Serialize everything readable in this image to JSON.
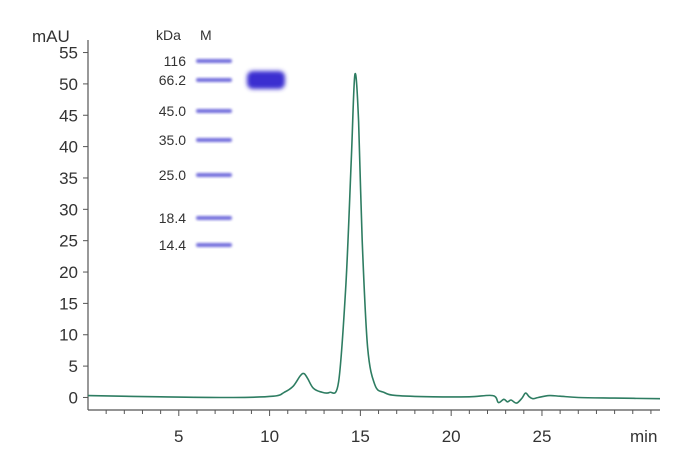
{
  "chart_data": {
    "type": "line",
    "xlabel": "min",
    "ylabel": "mAU",
    "xlim": [
      0,
      31.5
    ],
    "ylim": [
      -2,
      57
    ],
    "xticks": [
      5,
      10,
      15,
      20,
      25
    ],
    "yticks": [
      0,
      5,
      10,
      15,
      20,
      25,
      30,
      35,
      40,
      45,
      50,
      55
    ],
    "x_minor_step": 1,
    "grid": false,
    "line_color": "#2e7d62",
    "series": [
      {
        "x": [
          0,
          4,
          8,
          10.2,
          10.8,
          11.3,
          11.7,
          11.9,
          12.1,
          12.4,
          12.8,
          13.3,
          13.8,
          14.2,
          14.5,
          14.7,
          14.9,
          15.1,
          15.4,
          15.8,
          16.3,
          17,
          19,
          21,
          22.3,
          22.6,
          22.9,
          23.1,
          23.3,
          23.6,
          23.9,
          24.1,
          24.3,
          24.5,
          24.8,
          25.4,
          26,
          27,
          29,
          31.5
        ],
        "y": [
          0.3,
          0.1,
          0.0,
          0.2,
          0.8,
          1.8,
          3.5,
          3.8,
          3.0,
          1.5,
          0.9,
          0.8,
          2.5,
          18,
          38,
          51.5,
          44,
          25,
          8,
          2.0,
          0.8,
          0.3,
          0.1,
          0.1,
          0.3,
          -0.8,
          -0.3,
          -0.7,
          -0.4,
          -0.9,
          -0.1,
          0.7,
          0.1,
          -0.2,
          0.0,
          0.3,
          0.2,
          0.0,
          -0.1,
          -0.2
        ]
      }
    ],
    "gel_inset": {
      "header_unit": "kDa",
      "header_lane": "M",
      "marker_labels": [
        "116",
        "66.2",
        "45.0",
        "35.0",
        "25.0",
        "18.4",
        "14.4"
      ],
      "marker_color": "#5b55d6",
      "sample_band_color": "#3a2fd0"
    }
  }
}
